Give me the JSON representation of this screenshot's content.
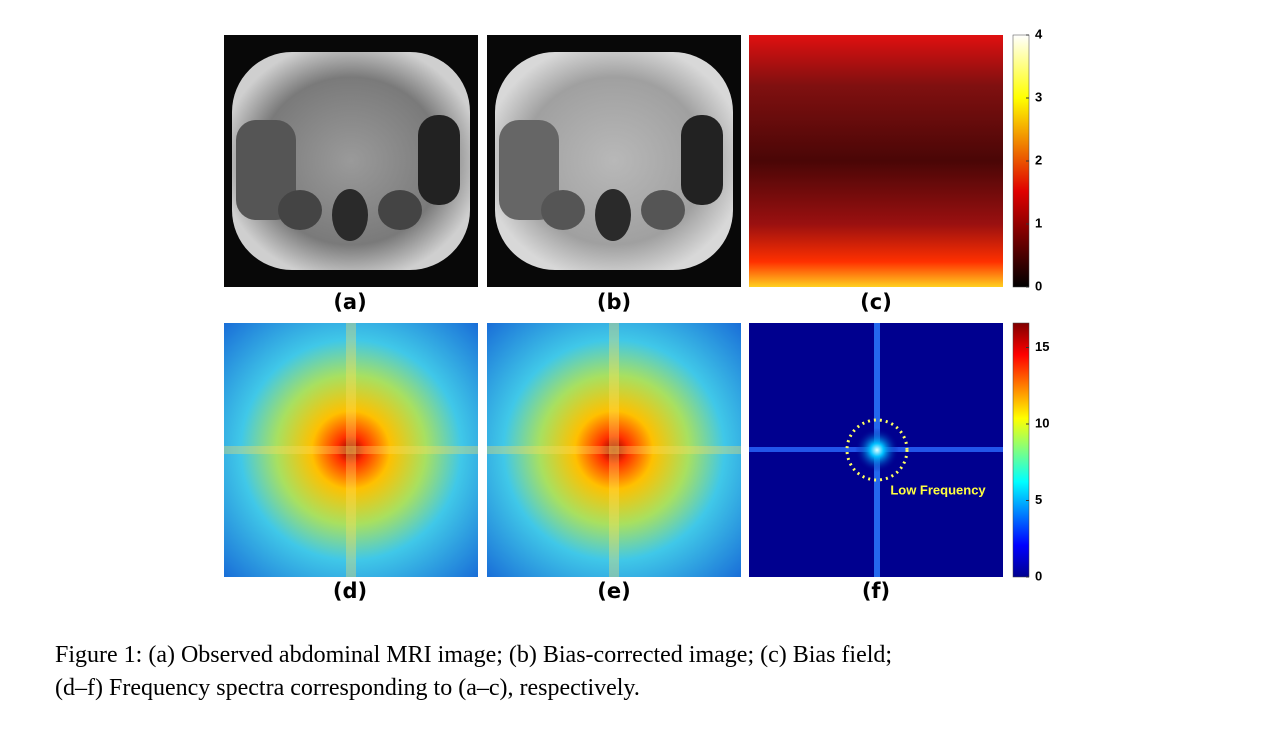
{
  "figure": {
    "panel_labels": [
      "(a)",
      "(b)",
      "(c)",
      "(d)",
      "(e)",
      "(f)"
    ],
    "colorbars": [
      {
        "lim": [
          0,
          4
        ],
        "ticks": [
          0,
          1,
          2,
          3,
          4
        ]
      },
      {
        "lim": [
          0,
          16.6
        ],
        "ticks": [
          0,
          5,
          10,
          15
        ]
      }
    ],
    "annotation": "Low Frequency",
    "caption": [
      "Figure 1: (a) Observed abdominal MRI image; (b) Bias-corrected image; (c) Bias field;",
      "(d–f) Frequency spectra corresponding to (a–c), respectively."
    ]
  }
}
